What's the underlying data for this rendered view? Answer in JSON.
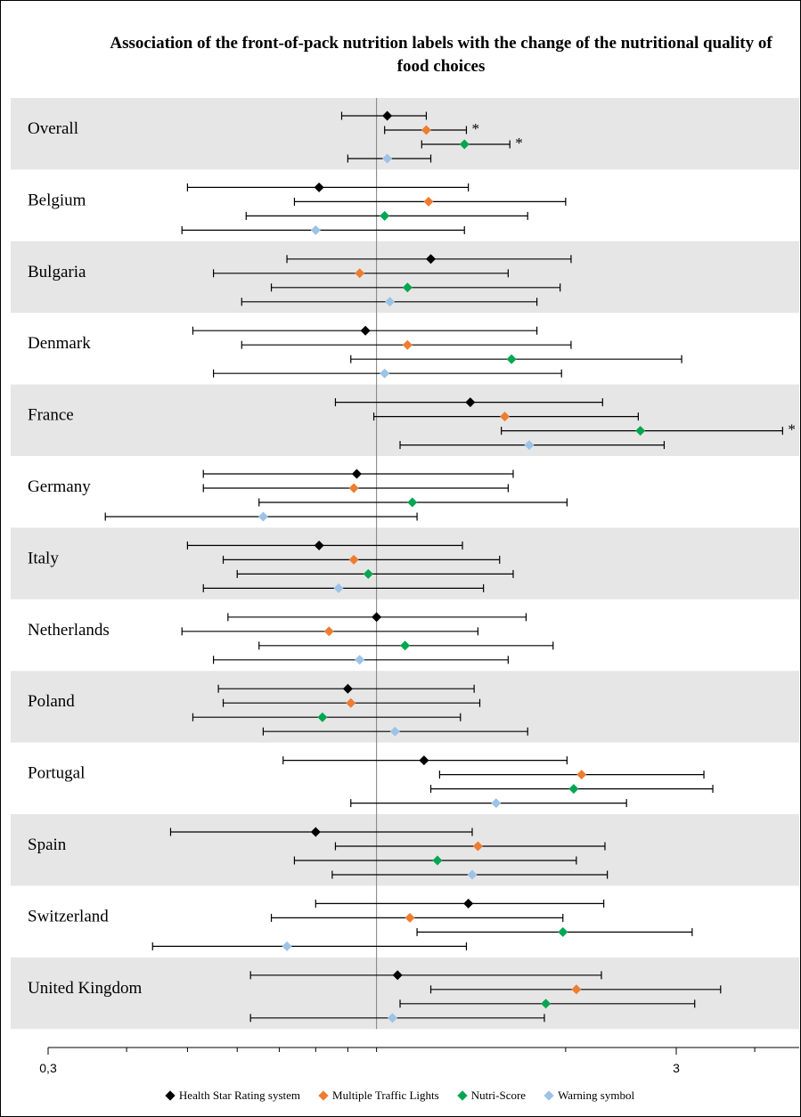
{
  "chart_data": {
    "type": "forest",
    "title": "Association of the front-of-pack nutrition labels with the change of the nutritional quality of food choices",
    "x_scale": "log",
    "xlim": [
      0.3,
      5.0
    ],
    "reference_line": 1,
    "x_tick_labels": [
      "0,3",
      "3"
    ],
    "series": [
      {
        "name": "Health Star Rating system",
        "color": "#000000"
      },
      {
        "name": "Multiple Traffic Lights",
        "color": "#ed7d31"
      },
      {
        "name": "Nutri-Score",
        "color": "#00a651"
      },
      {
        "name": "Warning symbol",
        "color": "#9dc3e6"
      }
    ],
    "groups": [
      {
        "label": "Overall",
        "shaded": true,
        "rows": [
          {
            "lo": 0.88,
            "est": 1.04,
            "hi": 1.2,
            "sig": false
          },
          {
            "lo": 1.03,
            "est": 1.2,
            "hi": 1.39,
            "sig": true
          },
          {
            "lo": 1.18,
            "est": 1.38,
            "hi": 1.63,
            "sig": true
          },
          {
            "lo": 0.9,
            "est": 1.04,
            "hi": 1.22,
            "sig": false
          }
        ]
      },
      {
        "label": "Belgium",
        "shaded": false,
        "rows": [
          {
            "lo": 0.5,
            "est": 0.81,
            "hi": 1.4,
            "sig": false
          },
          {
            "lo": 0.74,
            "est": 1.21,
            "hi": 2.0,
            "sig": false
          },
          {
            "lo": 0.62,
            "est": 1.03,
            "hi": 1.74,
            "sig": false
          },
          {
            "lo": 0.49,
            "est": 0.8,
            "hi": 1.38,
            "sig": false
          }
        ]
      },
      {
        "label": "Bulgaria",
        "shaded": true,
        "rows": [
          {
            "lo": 0.72,
            "est": 1.22,
            "hi": 2.04,
            "sig": false
          },
          {
            "lo": 0.55,
            "est": 0.94,
            "hi": 1.62,
            "sig": false
          },
          {
            "lo": 0.68,
            "est": 1.12,
            "hi": 1.96,
            "sig": false
          },
          {
            "lo": 0.61,
            "est": 1.05,
            "hi": 1.8,
            "sig": false
          }
        ]
      },
      {
        "label": "Denmark",
        "shaded": false,
        "rows": [
          {
            "lo": 0.51,
            "est": 0.96,
            "hi": 1.8,
            "sig": false
          },
          {
            "lo": 0.61,
            "est": 1.12,
            "hi": 2.04,
            "sig": false
          },
          {
            "lo": 0.91,
            "est": 1.64,
            "hi": 3.06,
            "sig": false
          },
          {
            "lo": 0.55,
            "est": 1.03,
            "hi": 1.97,
            "sig": false
          }
        ]
      },
      {
        "label": "France",
        "shaded": true,
        "rows": [
          {
            "lo": 0.86,
            "est": 1.41,
            "hi": 2.29,
            "sig": false
          },
          {
            "lo": 0.99,
            "est": 1.6,
            "hi": 2.61,
            "sig": false
          },
          {
            "lo": 1.58,
            "est": 2.63,
            "hi": 4.43,
            "sig": true
          },
          {
            "lo": 1.09,
            "est": 1.75,
            "hi": 2.87,
            "sig": false
          }
        ]
      },
      {
        "label": "Germany",
        "shaded": false,
        "rows": [
          {
            "lo": 0.53,
            "est": 0.93,
            "hi": 1.65,
            "sig": false
          },
          {
            "lo": 0.53,
            "est": 0.92,
            "hi": 1.62,
            "sig": false
          },
          {
            "lo": 0.65,
            "est": 1.14,
            "hi": 2.01,
            "sig": false
          },
          {
            "lo": 0.37,
            "est": 0.66,
            "hi": 1.16,
            "sig": false
          }
        ]
      },
      {
        "label": "Italy",
        "shaded": true,
        "rows": [
          {
            "lo": 0.5,
            "est": 0.81,
            "hi": 1.37,
            "sig": false
          },
          {
            "lo": 0.57,
            "est": 0.92,
            "hi": 1.57,
            "sig": false
          },
          {
            "lo": 0.6,
            "est": 0.97,
            "hi": 1.65,
            "sig": false
          },
          {
            "lo": 0.53,
            "est": 0.87,
            "hi": 1.48,
            "sig": false
          }
        ]
      },
      {
        "label": "Netherlands",
        "shaded": false,
        "rows": [
          {
            "lo": 0.58,
            "est": 1.0,
            "hi": 1.73,
            "sig": false
          },
          {
            "lo": 0.49,
            "est": 0.84,
            "hi": 1.45,
            "sig": false
          },
          {
            "lo": 0.65,
            "est": 1.11,
            "hi": 1.91,
            "sig": false
          },
          {
            "lo": 0.55,
            "est": 0.94,
            "hi": 1.62,
            "sig": false
          }
        ]
      },
      {
        "label": "Poland",
        "shaded": true,
        "rows": [
          {
            "lo": 0.56,
            "est": 0.9,
            "hi": 1.43,
            "sig": false
          },
          {
            "lo": 0.57,
            "est": 0.91,
            "hi": 1.46,
            "sig": false
          },
          {
            "lo": 0.51,
            "est": 0.82,
            "hi": 1.36,
            "sig": false
          },
          {
            "lo": 0.66,
            "est": 1.07,
            "hi": 1.74,
            "sig": false
          }
        ]
      },
      {
        "label": "Portugal",
        "shaded": false,
        "rows": [
          {
            "lo": 0.71,
            "est": 1.19,
            "hi": 2.01,
            "sig": false
          },
          {
            "lo": 1.26,
            "est": 2.12,
            "hi": 3.32,
            "sig": false
          },
          {
            "lo": 1.22,
            "est": 2.06,
            "hi": 3.43,
            "sig": false
          },
          {
            "lo": 0.91,
            "est": 1.55,
            "hi": 2.5,
            "sig": false
          }
        ]
      },
      {
        "label": "Spain",
        "shaded": true,
        "rows": [
          {
            "lo": 0.47,
            "est": 0.8,
            "hi": 1.42,
            "sig": false
          },
          {
            "lo": 0.86,
            "est": 1.45,
            "hi": 2.31,
            "sig": false
          },
          {
            "lo": 0.74,
            "est": 1.25,
            "hi": 2.08,
            "sig": false
          },
          {
            "lo": 0.85,
            "est": 1.42,
            "hi": 2.33,
            "sig": false
          }
        ]
      },
      {
        "label": "Switzerland",
        "shaded": false,
        "rows": [
          {
            "lo": 0.8,
            "est": 1.4,
            "hi": 2.3,
            "sig": false
          },
          {
            "lo": 0.68,
            "est": 1.13,
            "hi": 1.98,
            "sig": false
          },
          {
            "lo": 1.16,
            "est": 1.98,
            "hi": 3.18,
            "sig": false
          },
          {
            "lo": 0.44,
            "est": 0.72,
            "hi": 1.39,
            "sig": false
          }
        ]
      },
      {
        "label": "United Kingdom",
        "shaded": true,
        "rows": [
          {
            "lo": 0.63,
            "est": 1.08,
            "hi": 2.28,
            "sig": false
          },
          {
            "lo": 1.22,
            "est": 2.08,
            "hi": 3.53,
            "sig": false
          },
          {
            "lo": 1.09,
            "est": 1.86,
            "hi": 3.21,
            "sig": false
          },
          {
            "lo": 0.63,
            "est": 1.06,
            "hi": 1.85,
            "sig": false
          }
        ]
      }
    ],
    "significance_marker": "*",
    "legend_position": "bottom"
  }
}
